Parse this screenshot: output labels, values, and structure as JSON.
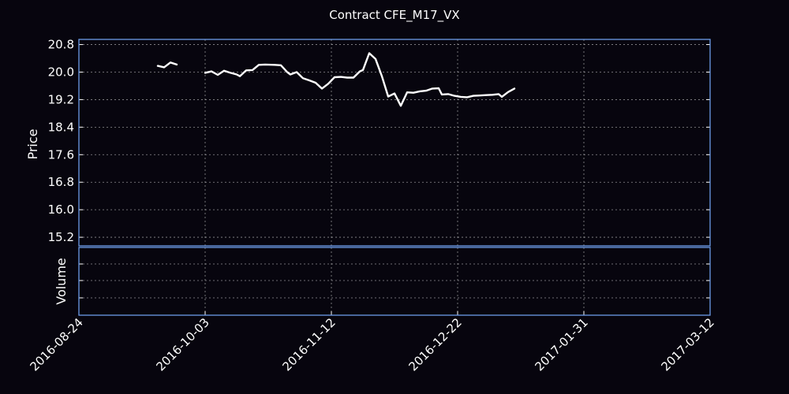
{
  "chart_data": {
    "type": "line",
    "title": "Contract CFE_M17_VX",
    "price_panel": {
      "ylabel": "Price",
      "ylim": [
        14.95,
        20.95
      ],
      "yticks": [
        "20.8",
        "20.0",
        "19.2",
        "18.4",
        "17.6",
        "16.8",
        "16.0",
        "15.2"
      ],
      "grid": true,
      "line_color": "#ffffff",
      "series": [
        {
          "values": [
            [
              "2016-09-18",
              20.18
            ],
            [
              "2016-09-20",
              20.14
            ],
            [
              "2016-09-22",
              20.28
            ],
            [
              "2016-09-24",
              20.22
            ]
          ]
        },
        {
          "values": [
            [
              "2016-10-03",
              19.98
            ],
            [
              "2016-10-05",
              20.02
            ],
            [
              "2016-10-07",
              19.92
            ],
            [
              "2016-10-09",
              20.04
            ],
            [
              "2016-10-11",
              19.98
            ],
            [
              "2016-10-13",
              19.93
            ],
            [
              "2016-10-14",
              19.88
            ],
            [
              "2016-10-16",
              20.05
            ],
            [
              "2016-10-18",
              20.06
            ],
            [
              "2016-10-20",
              20.21
            ],
            [
              "2016-10-22",
              20.22
            ],
            [
              "2016-10-25",
              20.21
            ],
            [
              "2016-10-27",
              20.2
            ],
            [
              "2016-10-29",
              20.0
            ],
            [
              "2016-10-30",
              19.93
            ],
            [
              "2016-11-01",
              20.0
            ],
            [
              "2016-11-03",
              19.82
            ],
            [
              "2016-11-05",
              19.76
            ],
            [
              "2016-11-07",
              19.69
            ],
            [
              "2016-11-09",
              19.52
            ],
            [
              "2016-11-11",
              19.66
            ],
            [
              "2016-11-13",
              19.85
            ],
            [
              "2016-11-15",
              19.86
            ],
            [
              "2016-11-17",
              19.84
            ],
            [
              "2016-11-19",
              19.84
            ],
            [
              "2016-11-21",
              20.02
            ],
            [
              "2016-11-22",
              20.06
            ],
            [
              "2016-11-24",
              20.55
            ],
            [
              "2016-11-26",
              20.38
            ],
            [
              "2016-11-28",
              19.88
            ],
            [
              "2016-11-30",
              19.29
            ],
            [
              "2016-12-02",
              19.38
            ],
            [
              "2016-12-04",
              19.02
            ],
            [
              "2016-12-06",
              19.41
            ],
            [
              "2016-12-08",
              19.4
            ],
            [
              "2016-12-10",
              19.44
            ],
            [
              "2016-12-12",
              19.46
            ],
            [
              "2016-12-14",
              19.52
            ],
            [
              "2016-12-16",
              19.53
            ],
            [
              "2016-12-17",
              19.35
            ],
            [
              "2016-12-19",
              19.36
            ],
            [
              "2016-12-21",
              19.31
            ],
            [
              "2016-12-23",
              19.28
            ],
            [
              "2016-12-25",
              19.27
            ],
            [
              "2016-12-27",
              19.31
            ],
            [
              "2016-12-29",
              19.32
            ],
            [
              "2016-12-31",
              19.33
            ],
            [
              "2017-01-02",
              19.34
            ],
            [
              "2017-01-04",
              19.36
            ],
            [
              "2017-01-05",
              19.28
            ],
            [
              "2017-01-07",
              19.42
            ],
            [
              "2017-01-09",
              19.52
            ]
          ]
        }
      ]
    },
    "volume_panel": {
      "ylabel": "Volume",
      "grid": true,
      "bar_color": "#1f1fcf",
      "values": []
    },
    "x_ticks": [
      "2016-08-24",
      "2016-10-03",
      "2016-11-12",
      "2016-12-22",
      "2017-01-31",
      "2017-03-12"
    ]
  }
}
